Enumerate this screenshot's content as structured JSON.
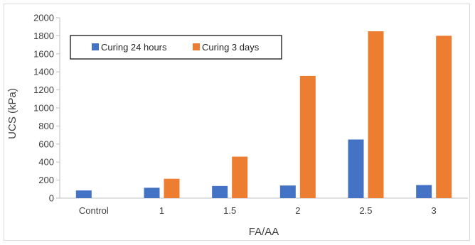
{
  "chart_data": {
    "type": "bar",
    "title": "",
    "xlabel": "FA/AA",
    "ylabel": "UCS (kPa)",
    "ylim": [
      0,
      2000
    ],
    "yticks": [
      0,
      200,
      400,
      600,
      800,
      1000,
      1200,
      1400,
      1600,
      1800,
      2000
    ],
    "categories": [
      "Control",
      "1",
      "1.5",
      "2",
      "2.5",
      "3"
    ],
    "series": [
      {
        "name": "Curing 24 hours",
        "color": "#4472c4",
        "values": [
          85,
          115,
          135,
          140,
          650,
          145
        ]
      },
      {
        "name": "Curing 3 days",
        "color": "#ed7d31",
        "values": [
          null,
          215,
          460,
          1355,
          1850,
          1800
        ]
      }
    ],
    "grid": false,
    "legend_position": "top-left"
  }
}
